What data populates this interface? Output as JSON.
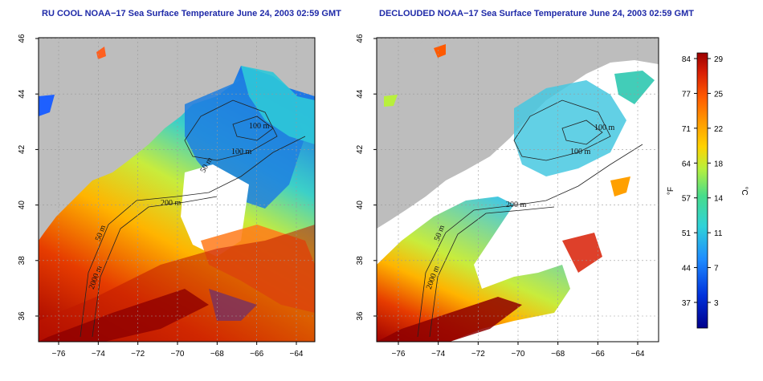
{
  "panels": [
    {
      "title": "RU COOL NOAA−17 Sea Surface Temperature June 24, 2003 02:59 GMT",
      "contour_labels": [
        "100 m",
        "100 m",
        "50 m",
        "200 m",
        "50 m",
        "2000 m"
      ]
    },
    {
      "title": "DECLOUDED NOAA−17 Sea Surface Temperature June 24, 2003 02:59 GMT",
      "contour_labels": [
        "100 m",
        "100 m",
        "200 m",
        "50 m",
        "2000 m"
      ]
    }
  ],
  "axes": {
    "x_ticks": [
      "−76",
      "−74",
      "−72",
      "−70",
      "−68",
      "−66",
      "−64"
    ],
    "y_ticks": [
      "36",
      "38",
      "40",
      "42",
      "44",
      "46"
    ]
  },
  "colorbar": {
    "fahrenheit_label": "°F",
    "celsius_label": "°C",
    "fahrenheit_ticks": [
      "84",
      "77",
      "71",
      "64",
      "57",
      "51",
      "44",
      "37"
    ],
    "celsius_ticks": [
      "29",
      "25",
      "22",
      "18",
      "14",
      "11",
      "7",
      "3"
    ],
    "colors": [
      "#9b0000",
      "#d81e05",
      "#ff5a00",
      "#ff9a00",
      "#ffd200",
      "#b8f03c",
      "#46dc8c",
      "#2fd2d8",
      "#1e8cff",
      "#0032dc",
      "#00008c"
    ]
  },
  "colors": {
    "land": "#bdbdbd",
    "cloud": "#ffffff",
    "title": "#1f2aa8"
  }
}
